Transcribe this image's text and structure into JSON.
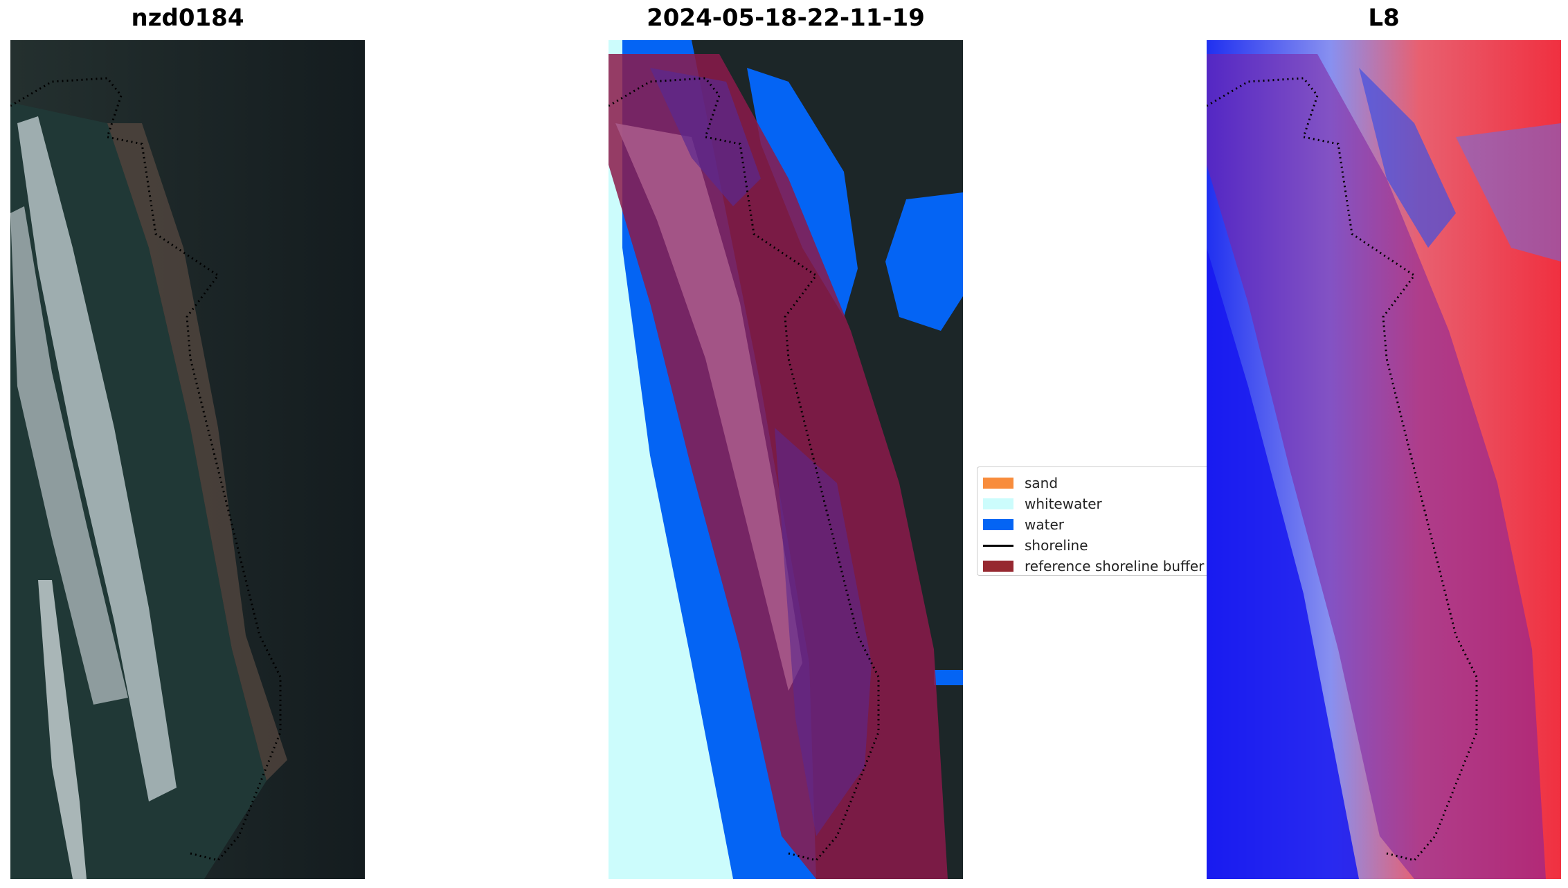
{
  "panels": {
    "left": {
      "title": "nzd0184"
    },
    "middle": {
      "title": "2024-05-18-22-11-19"
    },
    "right": {
      "title": "L8"
    }
  },
  "legend": {
    "items": [
      {
        "label": "sand",
        "color": "#f88c3c",
        "kind": "patch"
      },
      {
        "label": "whitewater",
        "color": "#ccfcfc",
        "kind": "patch"
      },
      {
        "label": "water",
        "color": "#0464f4",
        "kind": "patch"
      },
      {
        "label": "shoreline",
        "color": "#000000",
        "kind": "line"
      },
      {
        "label": "reference shoreline buffer",
        "color": "#962830",
        "kind": "patch"
      }
    ]
  },
  "colors": {
    "buffer": "#8b1a4a",
    "water": "#0464f4",
    "whitewater": "#ccfcfc",
    "sand": "#f88c3c",
    "land_dark": "#1a2228",
    "index_red": "#e8303c",
    "index_blue": "#2030f0"
  }
}
